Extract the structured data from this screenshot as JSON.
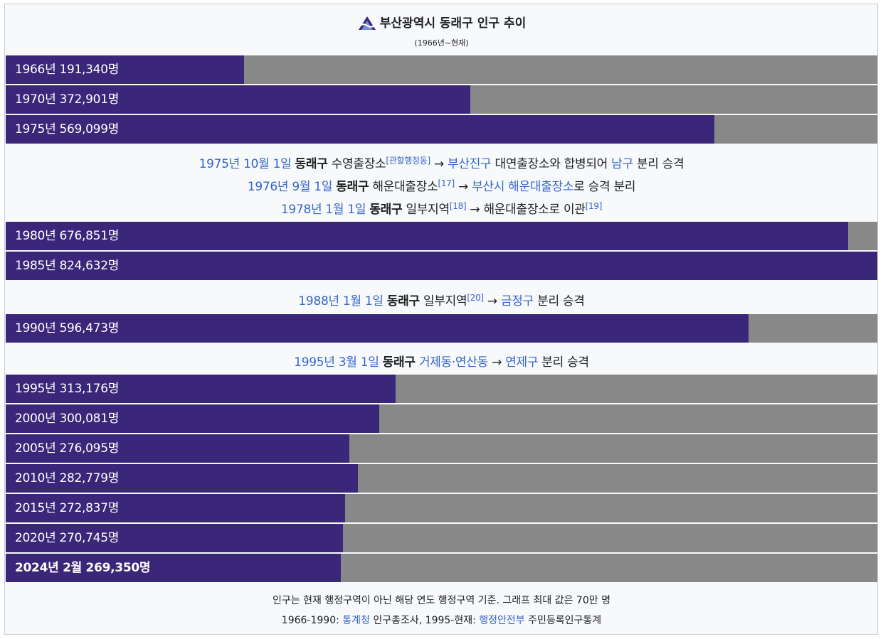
{
  "title": "부산광역시 동래구 인구 추이",
  "subtitle": "(1966년~현재)",
  "chart_data": {
    "type": "bar",
    "orientation": "horizontal",
    "xlim": [
      0,
      700000
    ],
    "series": [
      {
        "label": "1966년 191,340명",
        "value": 191340
      },
      {
        "label": "1970년 372,901명",
        "value": 372901
      },
      {
        "label": "1975년 569,099명",
        "value": 569099
      },
      {
        "label": "1980년 676,851명",
        "value": 676851
      },
      {
        "label": "1985년 824,632명",
        "value": 824632
      },
      {
        "label": "1990년 596,473명",
        "value": 596473
      },
      {
        "label": "1995년 313,176명",
        "value": 313176
      },
      {
        "label": "2000년 300,081명",
        "value": 300081
      },
      {
        "label": "2005년 276,095명",
        "value": 276095
      },
      {
        "label": "2010년 282,779명",
        "value": 282779
      },
      {
        "label": "2015년 272,837명",
        "value": 272837
      },
      {
        "label": "2020년 270,745명",
        "value": 270745
      },
      {
        "label": "2024년 2월 269,350명",
        "value": 269350,
        "bold": true
      }
    ],
    "colors": {
      "bar": "#3b2779",
      "track": "#888888",
      "link": "#3366cc"
    }
  },
  "notes": {
    "n1": {
      "line1": {
        "date": "1975년 10월 1일",
        "district": "동래구",
        "t1": "수영출장소",
        "ref": "[관할행정동]",
        "arrow": "→",
        "link1": "부산진구",
        "t2": "대연출장소와 합병되어",
        "link2": "남구",
        "t3": "분리 승격"
      },
      "line2": {
        "date": "1976년 9월 1일",
        "district": "동래구",
        "t1": "해운대출장소",
        "ref": "[17]",
        "arrow": "→",
        "link1": "부산시 해운대출장소",
        "t2": "로 승격 분리"
      },
      "line3": {
        "date": "1978년 1월 1일",
        "district": "동래구",
        "t1": "일부지역",
        "ref": "[18]",
        "arrow": "→",
        "t2": "해운대출장소로 이관",
        "ref2": "[19]"
      }
    },
    "n2": {
      "date": "1988년 1월 1일",
      "district": "동래구",
      "t1": "일부지역",
      "ref": "[20]",
      "arrow": "→",
      "link1": "금정구",
      "t2": "분리 승격"
    },
    "n3": {
      "date": "1995년 3월 1일",
      "district": "동래구",
      "link1": "거제동·연산동",
      "arrow": "→",
      "link2": "연제구",
      "t2": "분리 승격"
    }
  },
  "footer": {
    "line1": "인구는 현재 행정구역이 아닌 해당 연도 행정구역 기준. 그래프 최대 값은 70만 명",
    "line2_prefix": "1966-1990: ",
    "line2_link1": "통계청",
    "line2_mid": " 인구총조사, 1995-현재: ",
    "line2_link2": "행정안전부",
    "line2_suffix": " 주민등록인구통계"
  }
}
